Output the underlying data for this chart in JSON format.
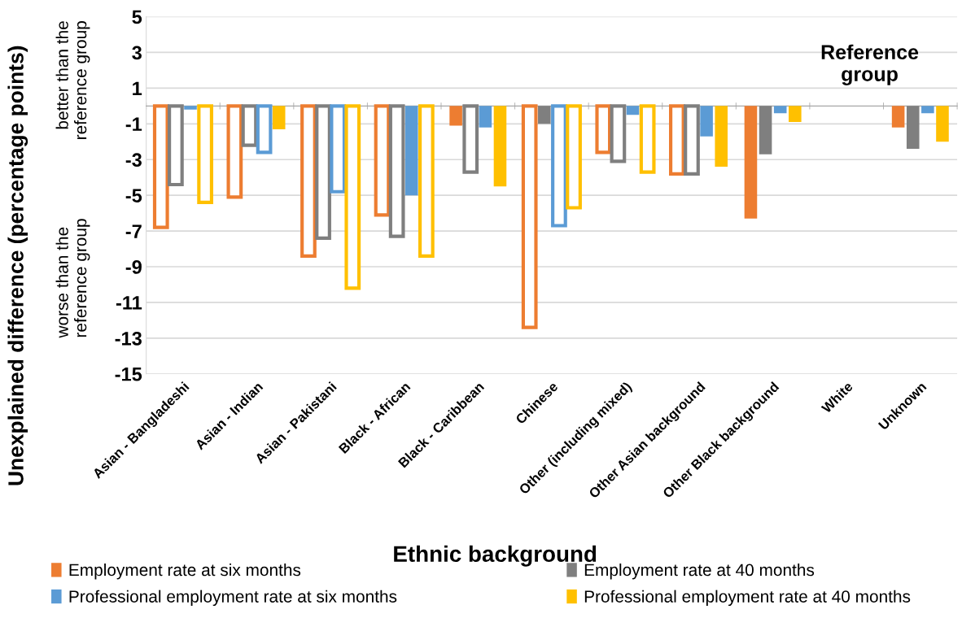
{
  "chart_data": {
    "type": "bar",
    "ylabel": "Unexplained difference (percentage points)",
    "xlabel": "Ethnic background",
    "categories": [
      "Asian - Bangladeshi",
      "Asian - Indian",
      "Asian - Pakistani",
      "Black - African",
      "Black - Caribbean",
      "Chinese",
      "Other (including mixed)",
      "Other Asian background",
      "Other Black background",
      "White",
      "Unknown"
    ],
    "series": [
      {
        "name": "Employment rate at six months",
        "color": "#ed7d31",
        "values": [
          -6.8,
          -5.1,
          -8.4,
          -6.1,
          -1.1,
          -12.4,
          -2.6,
          -3.8,
          -6.3,
          null,
          -1.2
        ],
        "colors": [
          "#ffffff",
          "#ffffff",
          "#ffffff",
          "#ffffff",
          "#ed7d31",
          "#ffffff",
          "#ffffff",
          "#ffffff",
          "#ed7d31",
          "#ed7d31",
          "#ed7d31"
        ]
      },
      {
        "name": "Employment rate at 40 months",
        "color": "#7f7f7f",
        "values": [
          -4.4,
          -2.2,
          -7.4,
          -7.3,
          -3.7,
          -1.0,
          -3.1,
          -3.8,
          -2.7,
          null,
          -2.4
        ],
        "colors": [
          "#ffffff",
          "#ffffff",
          "#ffffff",
          "#ffffff",
          "#ffffff",
          "#7f7f7f",
          "#ffffff",
          "#ffffff",
          "#7f7f7f",
          "#7f7f7f",
          "#7f7f7f"
        ]
      },
      {
        "name": "Professional employment rate at six months",
        "color": "#5b9bd5",
        "values": [
          -0.2,
          -2.6,
          -4.8,
          -5.0,
          -1.2,
          -6.7,
          -0.5,
          -1.7,
          -0.4,
          null,
          -0.4
        ],
        "colors": [
          "#5b9bd5",
          "#ffffff",
          "#ffffff",
          "#5b9bd5",
          "#5b9bd5",
          "#ffffff",
          "#5b9bd5",
          "#5b9bd5",
          "#5b9bd5",
          "#5b9bd5",
          "#5b9bd5"
        ]
      },
      {
        "name": "Professional employment rate at 40 months",
        "color": "#ffc000",
        "values": [
          -5.4,
          -1.3,
          -10.2,
          -8.4,
          -4.5,
          -5.7,
          -3.7,
          -3.4,
          -0.9,
          null,
          -2.0
        ],
        "colors": [
          "#ffffff",
          "#ffc000",
          "#ffffff",
          "#ffffff",
          "#ffc000",
          "#ffffff",
          "#ffffff",
          "#ffc000",
          "#ffc000",
          "#ffc000",
          "#ffc000"
        ]
      }
    ],
    "ylim": [
      -15,
      5
    ],
    "yticks": [
      5,
      3,
      1,
      -1,
      -3,
      -5,
      -7,
      -9,
      -11,
      -13,
      -15
    ],
    "grid": "y",
    "legend": "bottom",
    "annotations": [
      "Reference group",
      "better than the reference group",
      "worse than the reference group"
    ]
  }
}
